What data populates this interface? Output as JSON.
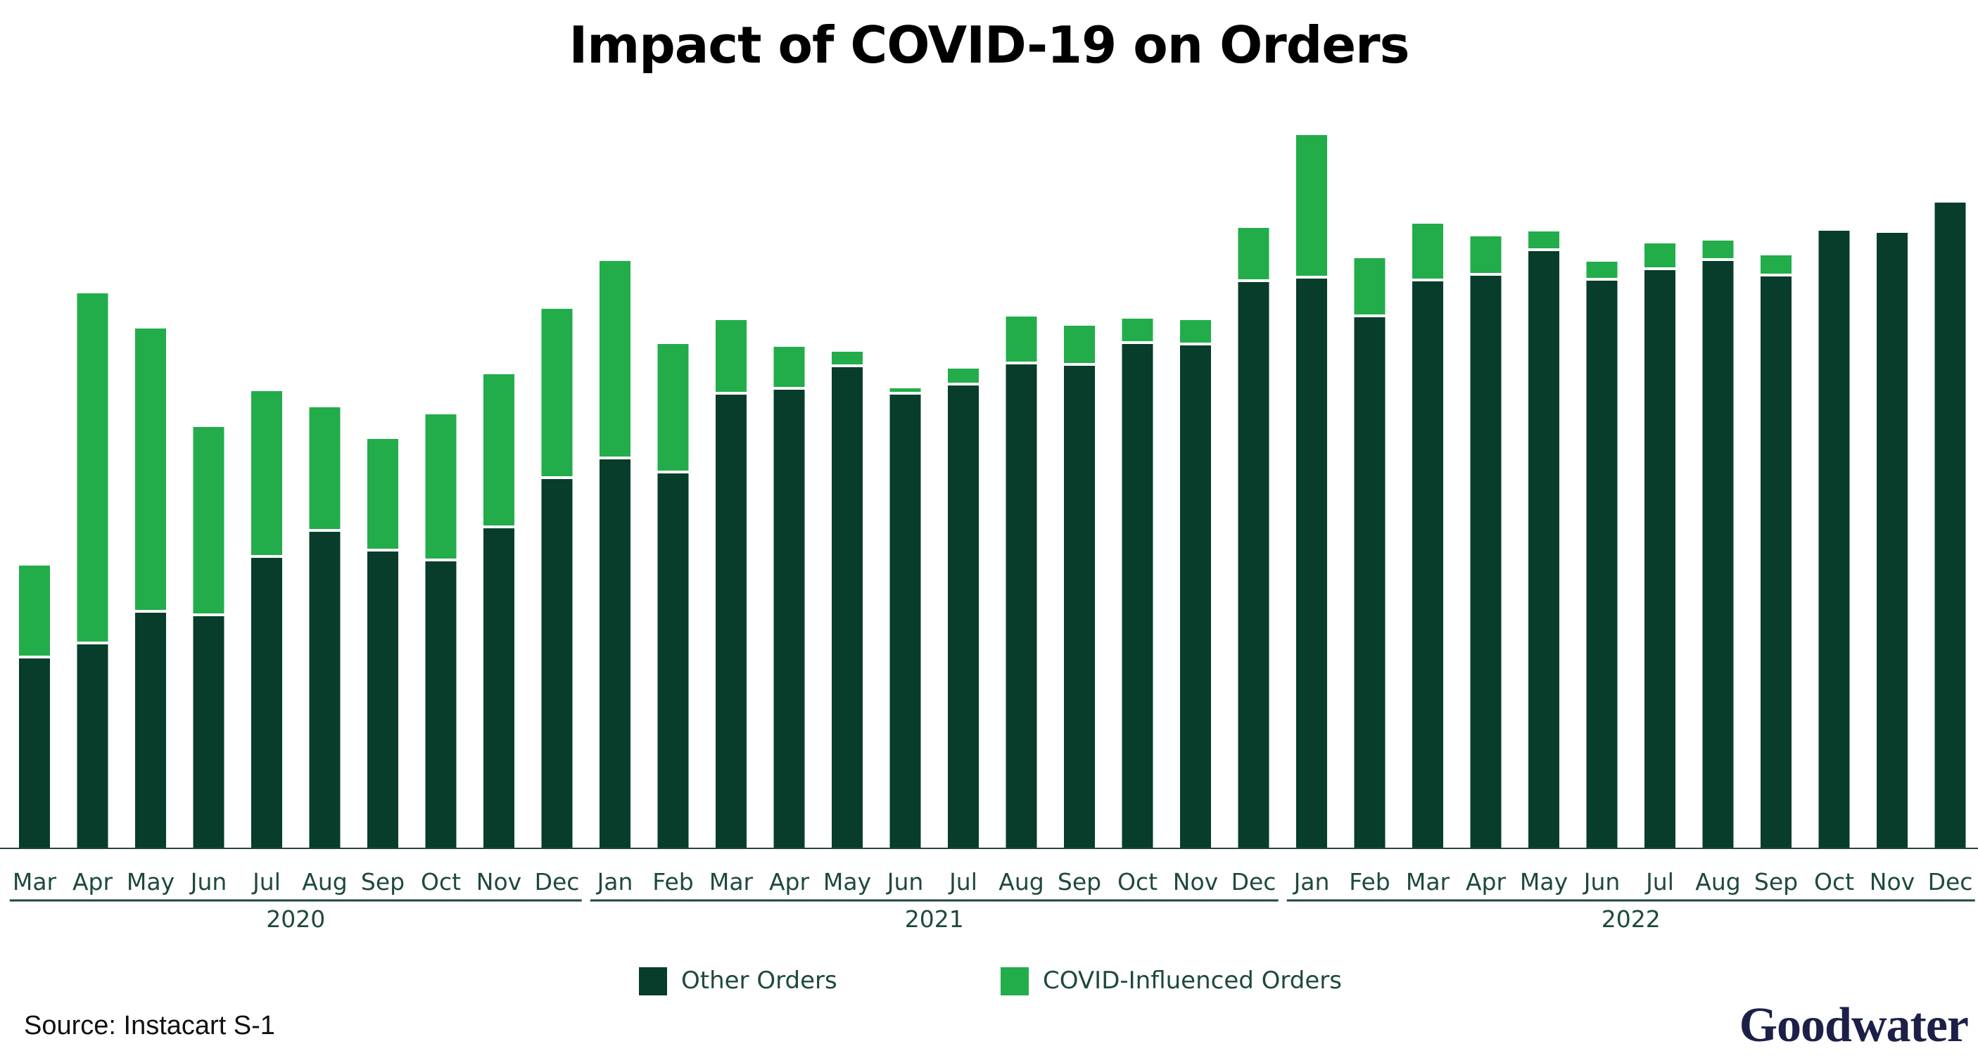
{
  "title": "Impact of COVID-19 on Orders",
  "source": "Source: Instacart S-1",
  "brand": "Goodwater",
  "colors": {
    "other_orders": "#073d2a",
    "covid_orders": "#22ad4a",
    "axis": "#1e4a38"
  },
  "chart_data": {
    "type": "bar",
    "stacked": true,
    "title": "Impact of COVID-19 on Orders",
    "xlabel": "",
    "ylabel": "",
    "y_axis_shown": false,
    "legend_position": "bottom-center",
    "grid": false,
    "categories": [
      "Mar",
      "Apr",
      "May",
      "Jun",
      "Jul",
      "Aug",
      "Sep",
      "Oct",
      "Nov",
      "Dec",
      "Jan",
      "Feb",
      "Mar",
      "Apr",
      "May",
      "Jun",
      "Jul",
      "Aug",
      "Sep",
      "Oct",
      "Nov",
      "Dec",
      "Jan",
      "Feb",
      "Mar",
      "Apr",
      "May",
      "Jun",
      "Jul",
      "Aug",
      "Sep",
      "Oct",
      "Nov",
      "Dec"
    ],
    "year_groups": [
      {
        "label": "2020",
        "start": 0,
        "end": 9
      },
      {
        "label": "2021",
        "start": 10,
        "end": 21
      },
      {
        "label": "2022",
        "start": 22,
        "end": 33
      }
    ],
    "series": [
      {
        "name": "Other Orders",
        "values": [
          270,
          290,
          335,
          330,
          413,
          450,
          422,
          408,
          455,
          525,
          553,
          533,
          645,
          652,
          684,
          645,
          658,
          688,
          686,
          717,
          715,
          805,
          810,
          755,
          806,
          814,
          849,
          807,
          822,
          835,
          813,
          878,
          875,
          918
        ]
      },
      {
        "name": "COVID-Influenced Orders",
        "values": [
          128,
          495,
          400,
          265,
          233,
          173,
          156,
          205,
          215,
          238,
          278,
          180,
          102,
          57,
          18,
          5,
          20,
          64,
          53,
          32,
          32,
          73,
          200,
          80,
          78,
          52,
          24,
          23,
          34,
          25,
          26,
          0,
          0,
          0
        ]
      }
    ],
    "ylim": [
      0,
      1010
    ]
  }
}
